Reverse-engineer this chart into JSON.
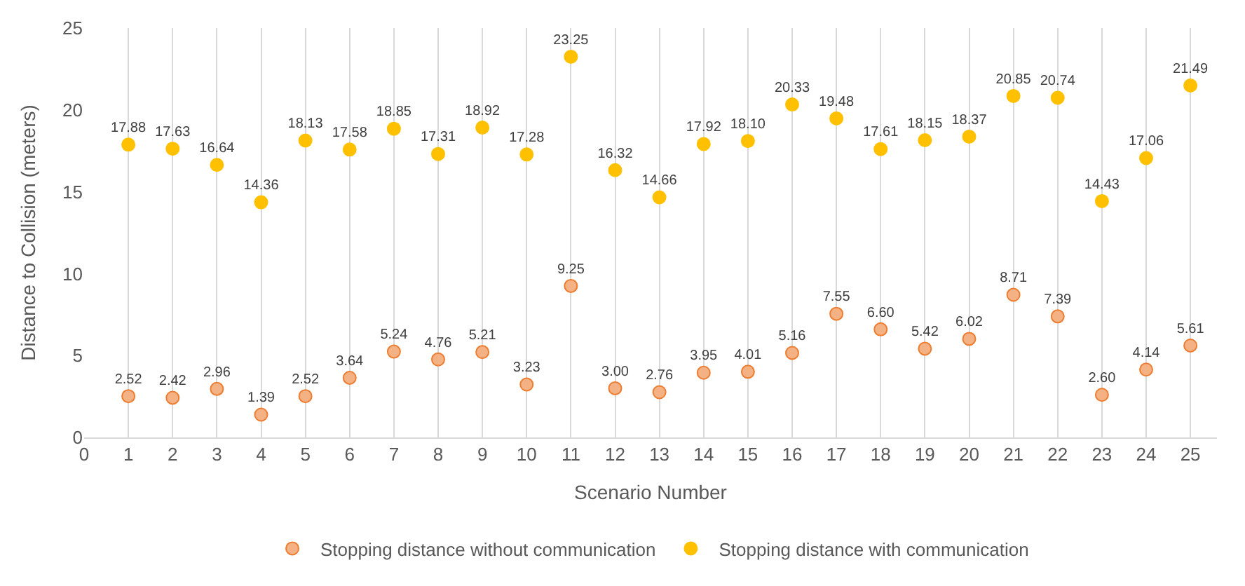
{
  "chart_data": {
    "type": "scatter",
    "xlabel": "Scenario Number",
    "ylabel": "Distance to Collision (meters)",
    "x": [
      1,
      2,
      3,
      4,
      5,
      6,
      7,
      8,
      9,
      10,
      11,
      12,
      13,
      14,
      15,
      16,
      17,
      18,
      19,
      20,
      21,
      22,
      23,
      24,
      25
    ],
    "series": [
      {
        "name": "Stopping distance without communication",
        "color": "#f4b183",
        "values": [
          2.52,
          2.42,
          2.96,
          1.39,
          2.52,
          3.64,
          5.24,
          4.76,
          5.21,
          3.23,
          9.25,
          3.0,
          2.76,
          3.95,
          4.01,
          5.16,
          7.55,
          6.6,
          5.42,
          6.02,
          8.71,
          7.39,
          2.6,
          4.14,
          5.61
        ],
        "value_labels": [
          "2.52",
          "2.42",
          "2.96",
          "1.39",
          "2.52",
          "3.64",
          "5.24",
          "4.76",
          "5.21",
          "3.23",
          "9.25",
          "3.00",
          "2.76",
          "3.95",
          "4.01",
          "5.16",
          "7.55",
          "6.60",
          "5.42",
          "6.02",
          "8.71",
          "7.39",
          "2.60",
          "4.14",
          "5.61"
        ]
      },
      {
        "name": "Stopping distance with communication",
        "color": "#ffc000",
        "values": [
          17.88,
          17.63,
          16.64,
          14.36,
          18.13,
          17.58,
          18.85,
          17.31,
          18.92,
          17.28,
          23.25,
          16.32,
          14.66,
          17.92,
          18.1,
          20.33,
          19.48,
          17.61,
          18.15,
          18.37,
          20.85,
          20.74,
          14.43,
          17.06,
          21.49
        ],
        "value_labels": [
          "17.88",
          "17.63",
          "16.64",
          "14.36",
          "18.13",
          "17.58",
          "18.85",
          "17.31",
          "18.92",
          "17.28",
          "23.25",
          "16.32",
          "14.66",
          "17.92",
          "18.10",
          "20.33",
          "19.48",
          "17.61",
          "18.15",
          "18.37",
          "20.85",
          "20.74",
          "14.43",
          "17.06",
          "21.49"
        ]
      }
    ],
    "xlim": [
      0,
      25.6
    ],
    "xticks": [
      0,
      1,
      2,
      3,
      4,
      5,
      6,
      7,
      8,
      9,
      10,
      11,
      12,
      13,
      14,
      15,
      16,
      17,
      18,
      19,
      20,
      21,
      22,
      23,
      24,
      25
    ],
    "ylim": [
      0,
      25
    ],
    "yticks": [
      0,
      5,
      10,
      15,
      20,
      25
    ],
    "grid": "x",
    "legend": "bottom",
    "marker": "circle"
  }
}
